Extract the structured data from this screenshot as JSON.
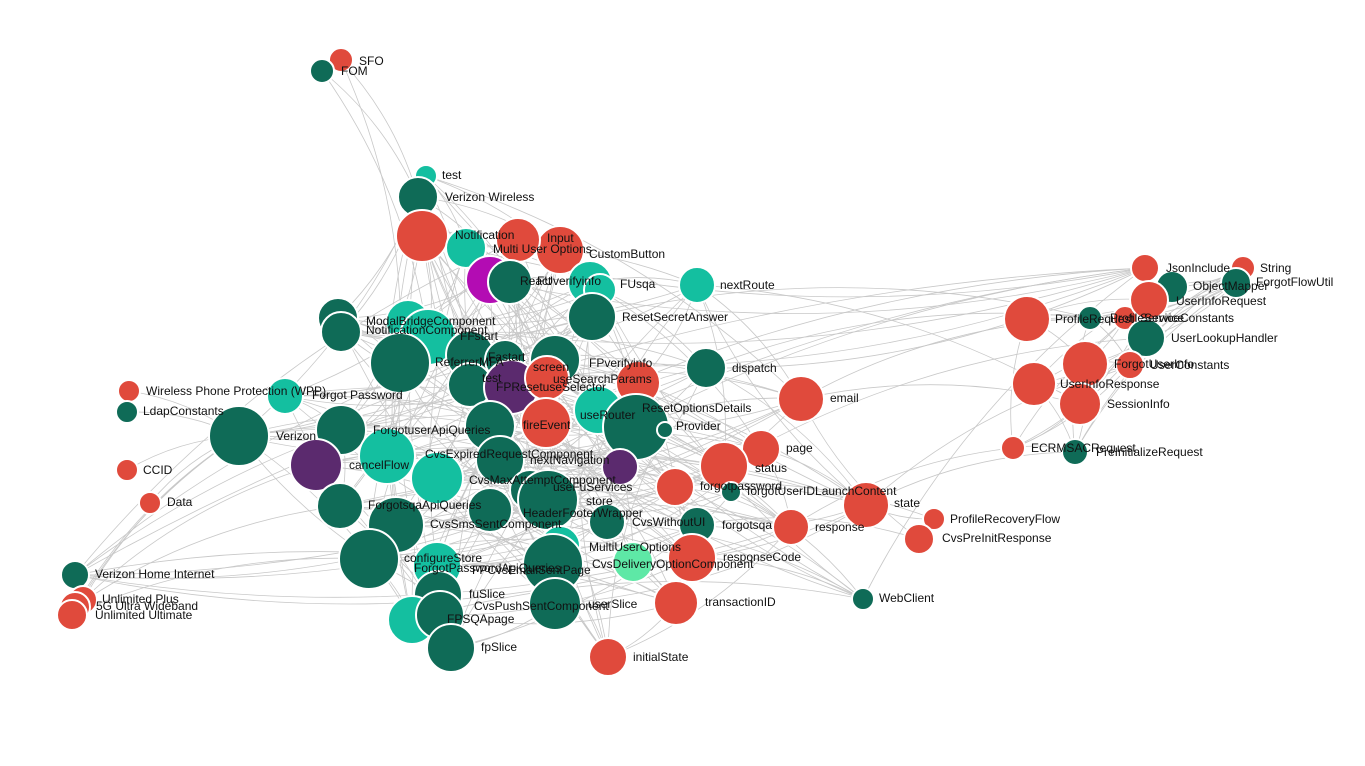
{
  "nodes": [
    {
      "label": "SFO",
      "color": "#e04a3c"
    },
    {
      "label": "FOM",
      "color": "#0f6b57"
    },
    {
      "label": "test",
      "color": "#14bfa0"
    },
    {
      "label": "Verizon Wireless",
      "color": "#0f6b57"
    },
    {
      "color": "#e04a3c"
    },
    {
      "label": "Notification",
      "color": "#14bfa0"
    },
    {
      "label": "Input",
      "color": "#e04a3c"
    },
    {
      "label": "Multi User Options",
      "color": "#e04a3c"
    },
    {
      "label": "React",
      "color": "#b30cb3"
    },
    {
      "label": "CustomButton",
      "color": "#14bfa0"
    },
    {
      "label": "FUverifyinfo",
      "color": "#0f6b57"
    },
    {
      "label": "FUsqa",
      "color": "#14bfa0"
    },
    {
      "label": "nextRoute",
      "color": "#14bfa0"
    },
    {
      "label": "ResetSecretAnswer",
      "color": "#0f6b57"
    },
    {
      "label": "ModalBridgeComponent",
      "color": "#14bfa0"
    },
    {
      "color": "#0f6b57"
    },
    {
      "label": "NotificationComponent",
      "color": "#0f6b57"
    },
    {
      "label": "FFstart",
      "color": "#14bfa0"
    },
    {
      "color": "#0f6b57"
    },
    {
      "label": "ReferrerMFA",
      "color": "#0f6b57"
    },
    {
      "label": "Fastart",
      "color": "#0f6b57"
    },
    {
      "label": "screen",
      "color": "#0f6b57"
    },
    {
      "label": "test",
      "color": "#0f6b57"
    },
    {
      "label": "FPResetuseSelector",
      "color": "#5b2a6e"
    },
    {
      "label": "useSearchParams",
      "color": "#e04a3c"
    },
    {
      "label": "FPverifyinfo",
      "color": "#e04a3c"
    },
    {
      "label": "Wireless Phone Protection (WPP)",
      "color": "#e04a3c"
    },
    {
      "label": "Forgot Password",
      "color": "#14bfa0"
    },
    {
      "label": "LdapConstants",
      "color": "#0f6b57"
    },
    {
      "label": "useRouter",
      "color": "#14bfa0"
    },
    {
      "label": "ResetOptionsDetails",
      "color": "#0f6b57"
    },
    {
      "label": "Provider",
      "color": "#0f6b57"
    },
    {
      "label": "dispatch",
      "color": "#0f6b57"
    },
    {
      "label": "email",
      "color": "#e04a3c"
    },
    {
      "label": "Verizon",
      "color": "#0f6b57"
    },
    {
      "label": "ForgotuserApiQueries",
      "color": "#0f6b57"
    },
    {
      "label": "fireEvent",
      "color": "#e04a3c"
    },
    {
      "color": "#0f6b57"
    },
    {
      "label": "cancelFlow",
      "color": "#5b2a6e"
    },
    {
      "color": "#14bfa0"
    },
    {
      "label": "CvsExpiredRequestComponent",
      "color": "#14bfa0"
    },
    {
      "label": "nextNavigation",
      "color": "#5b2a6e"
    },
    {
      "label": "page",
      "color": "#e04a3c"
    },
    {
      "label": "status",
      "color": "#e04a3c"
    },
    {
      "label": "CCID",
      "color": "#e04a3c"
    },
    {
      "label": "CvsMaxAttemptComponent",
      "color": "#0f6b57"
    },
    {
      "label": "useFuServices",
      "color": "#0f6b57"
    },
    {
      "label": "forgotpassword",
      "color": "#e04a3c"
    },
    {
      "label": "forgotUserIDLaunchContent",
      "color": "#0f6b57"
    },
    {
      "label": "Data",
      "color": "#e04a3c"
    },
    {
      "label": "ForgotsqaApiQueries",
      "color": "#0f6b57"
    },
    {
      "label": "store",
      "color": "#0f6b57"
    },
    {
      "label": "HeaderFooterWrapper",
      "color": "#0f6b57"
    },
    {
      "label": "state",
      "color": "#e04a3c"
    },
    {
      "label": "CvsSmsSentComponent",
      "color": "#0f6b57"
    },
    {
      "label": "CvsWithoutUI",
      "color": "#0f6b57"
    },
    {
      "label": "forgotsqa",
      "color": "#0f6b57"
    },
    {
      "label": "response",
      "color": "#e04a3c"
    },
    {
      "label": "ProfileRecoveryFlow",
      "color": "#e04a3c"
    },
    {
      "label": "CvsPreInitResponse",
      "color": "#e04a3c"
    },
    {
      "label": "configureStore",
      "color": "#0f6b57"
    },
    {
      "label": "MultiUserOptions",
      "color": "#14bfa0"
    },
    {
      "label": "CvsDeliveryOptionComponent",
      "color": "#5ee8a6"
    },
    {
      "label": "responseCode",
      "color": "#e04a3c"
    },
    {
      "label": "ForgotPasswordApiQueries",
      "color": "#14bfa0"
    },
    {
      "label": "FPCvsEmailSentPage",
      "color": "#0f6b57"
    },
    {
      "label": "Verizon Home Internet",
      "color": "#0f6b57"
    },
    {
      "label": "Unlimited Plus",
      "color": "#e04a3c"
    },
    {
      "label": "5G Ultra Wideband",
      "color": "#e04a3c"
    },
    {
      "label": "Unlimited Ultimate",
      "color": "#e04a3c"
    },
    {
      "label": "fuSlice",
      "color": "#0f6b57"
    },
    {
      "label": "CvsPushSentComponent",
      "color": "#14bfa0"
    },
    {
      "label": "userSlice",
      "color": "#0f6b57"
    },
    {
      "label": "transactionID",
      "color": "#e04a3c"
    },
    {
      "label": "WebClient",
      "color": "#0f6b57"
    },
    {
      "label": "FPSQApage",
      "color": "#0f6b57"
    },
    {
      "label": "fpSlice",
      "color": "#0f6b57"
    },
    {
      "label": "initialState",
      "color": "#e04a3c"
    },
    {
      "label": "JsonInclude",
      "color": "#e04a3c"
    },
    {
      "label": "String",
      "color": "#e04a3c"
    },
    {
      "label": "ObjectMapper",
      "color": "#0f6b57"
    },
    {
      "label": "ForgotFlowUtil",
      "color": "#0f6b57"
    },
    {
      "label": "ProfileRequest",
      "color": "#e04a3c"
    },
    {
      "label": "ProfileService",
      "color": "#0f6b57"
    },
    {
      "label": "ServiceConstants",
      "color": "#e04a3c"
    },
    {
      "label": "UserInfoRequest",
      "color": "#e04a3c"
    },
    {
      "label": "UserLookupHandler",
      "color": "#0f6b57"
    },
    {
      "label": "ForgotUserInfo",
      "color": "#e04a3c"
    },
    {
      "label": "UserConstants",
      "color": "#e04a3c"
    },
    {
      "label": "UserInfoResponse",
      "color": "#e04a3c"
    },
    {
      "label": "SessionInfo",
      "color": "#e04a3c"
    },
    {
      "label": "ECRMSACRequest",
      "color": "#e04a3c"
    },
    {
      "label": "PreInitializeRequest",
      "color": "#0f6b57"
    }
  ]
}
